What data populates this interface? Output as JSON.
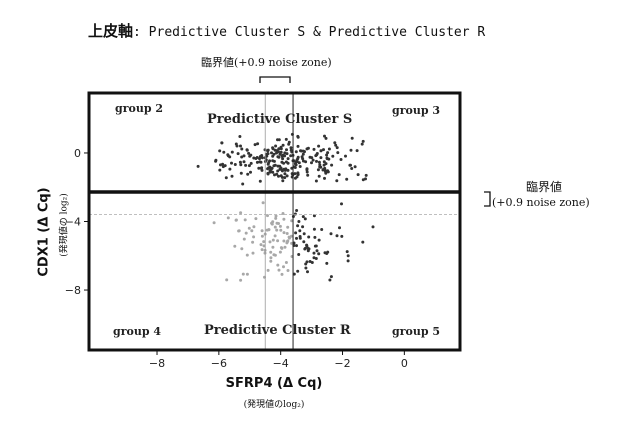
{
  "title": {
    "main": "上皮軸",
    "sub": ": Predictive Cluster S & Predictive Cluster R"
  },
  "top_note": "臨界値(+0.9 noise zone)",
  "right_note": {
    "line1": "臨界値",
    "line2": "(+0.9 noise zone)"
  },
  "axes": {
    "ylabel": "CDX1 (Δ Cq)",
    "ysub": "(発現値の log₂)",
    "xlabel": "SFRP4 (Δ Cq)",
    "xsub": "(発現値のlog₂)"
  },
  "regions": {
    "group2": "group 2",
    "group3": "group 3",
    "group4": "group 4",
    "group5": "group 5",
    "cluster_s": "Predictive Cluster S",
    "cluster_r": "Predictive Cluster R"
  },
  "chart_data": {
    "type": "scatter",
    "xlabel": "SFRP4 (Δ Cq)",
    "ylabel": "CDX1 (Δ Cq)",
    "x_ticks": [
      -8,
      -6,
      -4,
      -2,
      0
    ],
    "y_ticks": [
      0,
      -4,
      -8
    ],
    "xlim": [
      -10.2,
      1.8
    ],
    "ylim": [
      -11.5,
      3.5
    ],
    "thresholds": {
      "x": -3.6,
      "x_noise_low": -4.5,
      "y": -2.7,
      "y_noise_low": -3.6
    },
    "point_colors": {
      "dark": "#333333",
      "light": "#a8a8a8"
    }
  }
}
